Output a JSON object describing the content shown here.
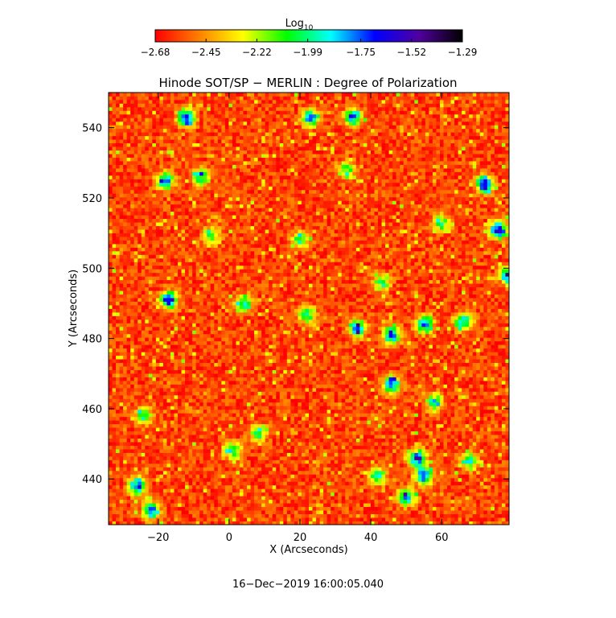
{
  "colorbar": {
    "title_main": "Log",
    "title_sub": "10",
    "tick_labels": [
      "−2.68",
      "−2.45",
      "−2.22",
      "−1.99",
      "−1.75",
      "−1.52",
      "−1.29"
    ],
    "tick_values": [
      -2.68,
      -2.45,
      -2.22,
      -1.99,
      -1.75,
      -1.52,
      -1.29
    ],
    "colormap": [
      "#ff0000",
      "#ff8000",
      "#ffff00",
      "#00ff00",
      "#00ffff",
      "#0000ff",
      "#5000a0",
      "#000000"
    ]
  },
  "footer": {
    "timestamp": "16−Dec−2019 16:00:05.040"
  },
  "chart_data": {
    "type": "heatmap",
    "title": "Hinode SOT/SP − MERLIN : Degree of Polarization",
    "xlabel": "X (Arcseconds)",
    "ylabel": "Y (Arcseconds)",
    "xlim": [
      -34,
      79
    ],
    "ylim": [
      427,
      550
    ],
    "x_ticks": [
      -20,
      0,
      20,
      40,
      60
    ],
    "x_tick_labels": [
      "−20",
      "0",
      "20",
      "40",
      "60"
    ],
    "y_ticks": [
      440,
      460,
      480,
      500,
      520,
      540
    ],
    "y_tick_labels": [
      "440",
      "460",
      "480",
      "500",
      "520",
      "540"
    ],
    "value_range": [
      -2.68,
      -1.29
    ],
    "value_scale": "log10",
    "background_level": -2.58,
    "patches": [
      {
        "x": -12,
        "y": 543,
        "v": -1.45
      },
      {
        "x": -18,
        "y": 525,
        "v": -1.62
      },
      {
        "x": -8,
        "y": 526,
        "v": -1.82
      },
      {
        "x": 72,
        "y": 524,
        "v": -1.35
      },
      {
        "x": 76,
        "y": 511,
        "v": -1.35
      },
      {
        "x": 79,
        "y": 498,
        "v": -1.4
      },
      {
        "x": -17,
        "y": 491,
        "v": -1.45
      },
      {
        "x": 4,
        "y": 490,
        "v": -1.8
      },
      {
        "x": 22,
        "y": 487,
        "v": -1.85
      },
      {
        "x": 36,
        "y": 483,
        "v": -1.55
      },
      {
        "x": 46,
        "y": 481,
        "v": -1.5
      },
      {
        "x": 55,
        "y": 484,
        "v": -1.55
      },
      {
        "x": 66,
        "y": 485,
        "v": -1.7
      },
      {
        "x": 46,
        "y": 467,
        "v": -1.6
      },
      {
        "x": 58,
        "y": 462,
        "v": -1.75
      },
      {
        "x": 53,
        "y": 446,
        "v": -1.4
      },
      {
        "x": 55,
        "y": 441,
        "v": -1.45
      },
      {
        "x": 50,
        "y": 435,
        "v": -1.55
      },
      {
        "x": 42,
        "y": 441,
        "v": -1.85
      },
      {
        "x": -26,
        "y": 438,
        "v": -1.55
      },
      {
        "x": -22,
        "y": 431,
        "v": -1.6
      },
      {
        "x": 68,
        "y": 445,
        "v": -1.8
      },
      {
        "x": -24,
        "y": 458,
        "v": -1.9
      },
      {
        "x": 1,
        "y": 448,
        "v": -1.9
      },
      {
        "x": 8,
        "y": 453,
        "v": -1.92
      },
      {
        "x": -5,
        "y": 509,
        "v": -1.95
      },
      {
        "x": 20,
        "y": 508,
        "v": -1.95
      },
      {
        "x": 33,
        "y": 528,
        "v": -1.95
      },
      {
        "x": 60,
        "y": 513,
        "v": -1.9
      },
      {
        "x": 35,
        "y": 543,
        "v": -1.6
      },
      {
        "x": 23,
        "y": 543,
        "v": -1.65
      },
      {
        "x": 43,
        "y": 496,
        "v": -1.95
      }
    ]
  }
}
